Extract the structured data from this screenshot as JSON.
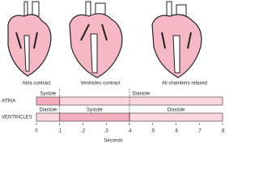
{
  "captions": [
    "Atria contract",
    "Ventricles contract",
    "All chambers relaxed"
  ],
  "rows": [
    {
      "label": "ATRIA",
      "segments": [
        {
          "label": "Systole",
          "start": 0,
          "end": 0.1
        },
        {
          "label": "Diastole",
          "start": 0.1,
          "end": 0.8
        }
      ]
    },
    {
      "label": "VENTRICLES",
      "segments": [
        {
          "label": "Diastole",
          "start": 0,
          "end": 0.1
        },
        {
          "label": "Systole",
          "start": 0.1,
          "end": 0.4
        },
        {
          "label": "Diastole",
          "start": 0.4,
          "end": 0.8
        }
      ]
    }
  ],
  "axis": {
    "label": "Seconds",
    "xlim": [
      0,
      0.8
    ],
    "xticks": [
      0,
      {
        "value": 0.1,
        "label": ".1"
      },
      {
        "value": 0.2,
        "label": ".2"
      },
      {
        "value": 0.3,
        "label": ".3"
      },
      {
        "value": 0.4,
        "label": ".4"
      },
      {
        "value": 0.5,
        "label": ".5"
      },
      {
        "value": 0.6,
        "label": ".6"
      },
      {
        "value": 0.7,
        "label": ".7"
      },
      {
        "value": 0.8,
        "label": ".8"
      }
    ]
  }
}
